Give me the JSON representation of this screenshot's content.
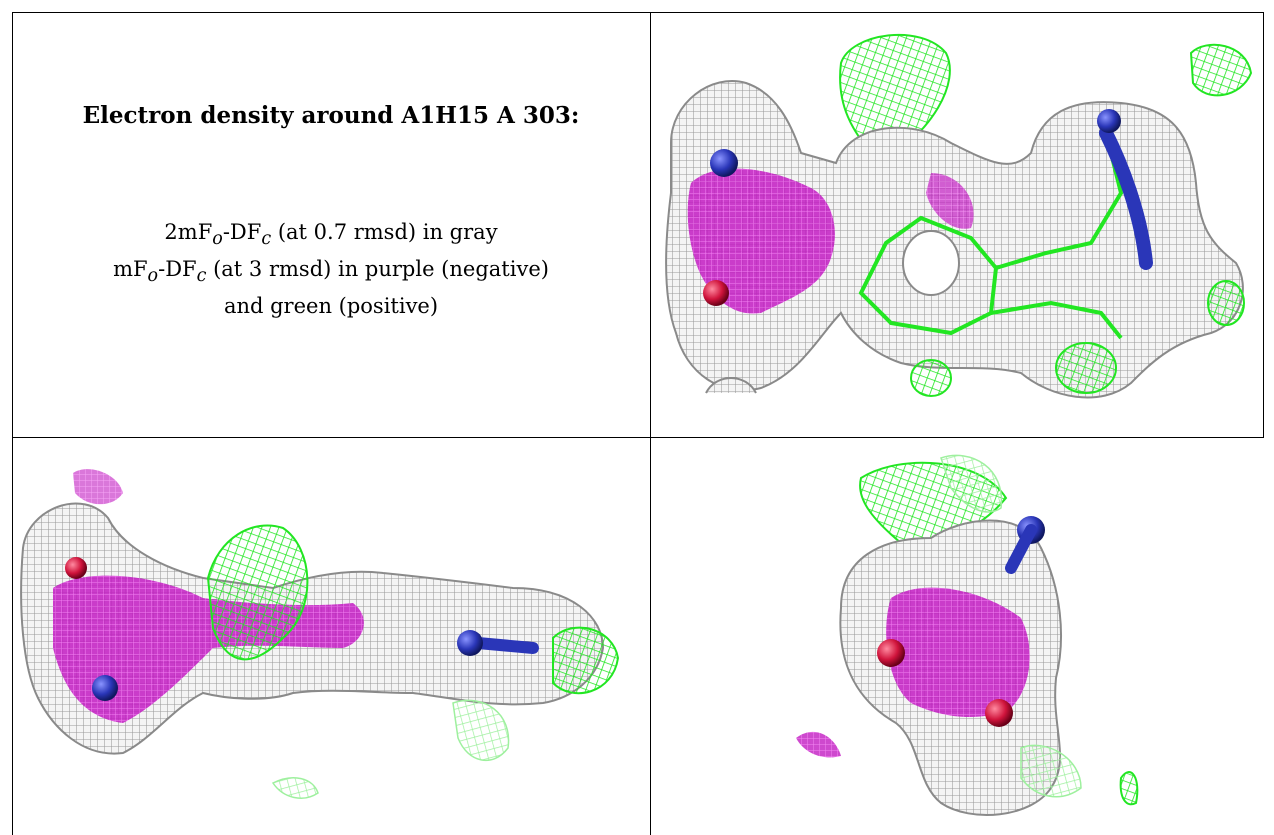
{
  "caption": {
    "title": "Electron density around A1H15 A 303:",
    "line1_prefix": "2mF",
    "line1_sub_o": "o",
    "line1_mid": "-DF",
    "line1_sub_c": "c",
    "line1_suffix": " (at 0.7 rmsd) in gray",
    "line2_prefix": "mF",
    "line2_sub_o": "o",
    "line2_mid": "-DF",
    "line2_sub_c": "c",
    "line2_suffix": " (at 3 rmsd) in purple (negative)",
    "line3": "and green (positive)"
  },
  "colors": {
    "density_2fofc": "#9a9a9a",
    "density_negative": "#d21ad2",
    "density_positive": "#22e622",
    "atom_nitrogen": "#2a36b8",
    "atom_oxygen": "#d0143c",
    "atom_sulfur": "#e8c020"
  },
  "panels": [
    {
      "id": "top-right",
      "view": "electron-density-view-1"
    },
    {
      "id": "bottom-left",
      "view": "electron-density-view-2"
    },
    {
      "id": "bottom-right",
      "view": "electron-density-view-3"
    }
  ]
}
